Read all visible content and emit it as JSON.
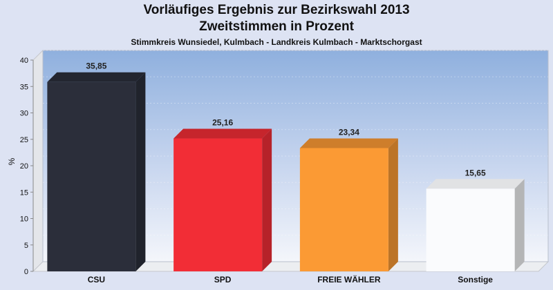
{
  "chart_data": {
    "type": "bar",
    "title": "Vorläufiges Ergebnis zur Bezirkswahl 2013",
    "subtitle": "Zweitstimmen in Prozent",
    "subtitle2": "Stimmkreis Wunsiedel, Kulmbach - Landkreis Kulmbach - Marktschorgast",
    "ylabel": "%",
    "xlabel": "",
    "ylim": [
      0,
      40
    ],
    "yticks": [
      0,
      5,
      10,
      15,
      20,
      25,
      30,
      35,
      40
    ],
    "categories": [
      "CSU",
      "SPD",
      "FREIE WÄHLER",
      "Sonstige"
    ],
    "values": [
      35.85,
      25.16,
      23.34,
      15.65
    ],
    "value_labels": [
      "35,85",
      "25,16",
      "23,34",
      "15,65"
    ],
    "colors": [
      "#2b2e3a",
      "#f22d36",
      "#fb9a34",
      "#fafbfd"
    ],
    "grid": true,
    "style": "3d"
  }
}
